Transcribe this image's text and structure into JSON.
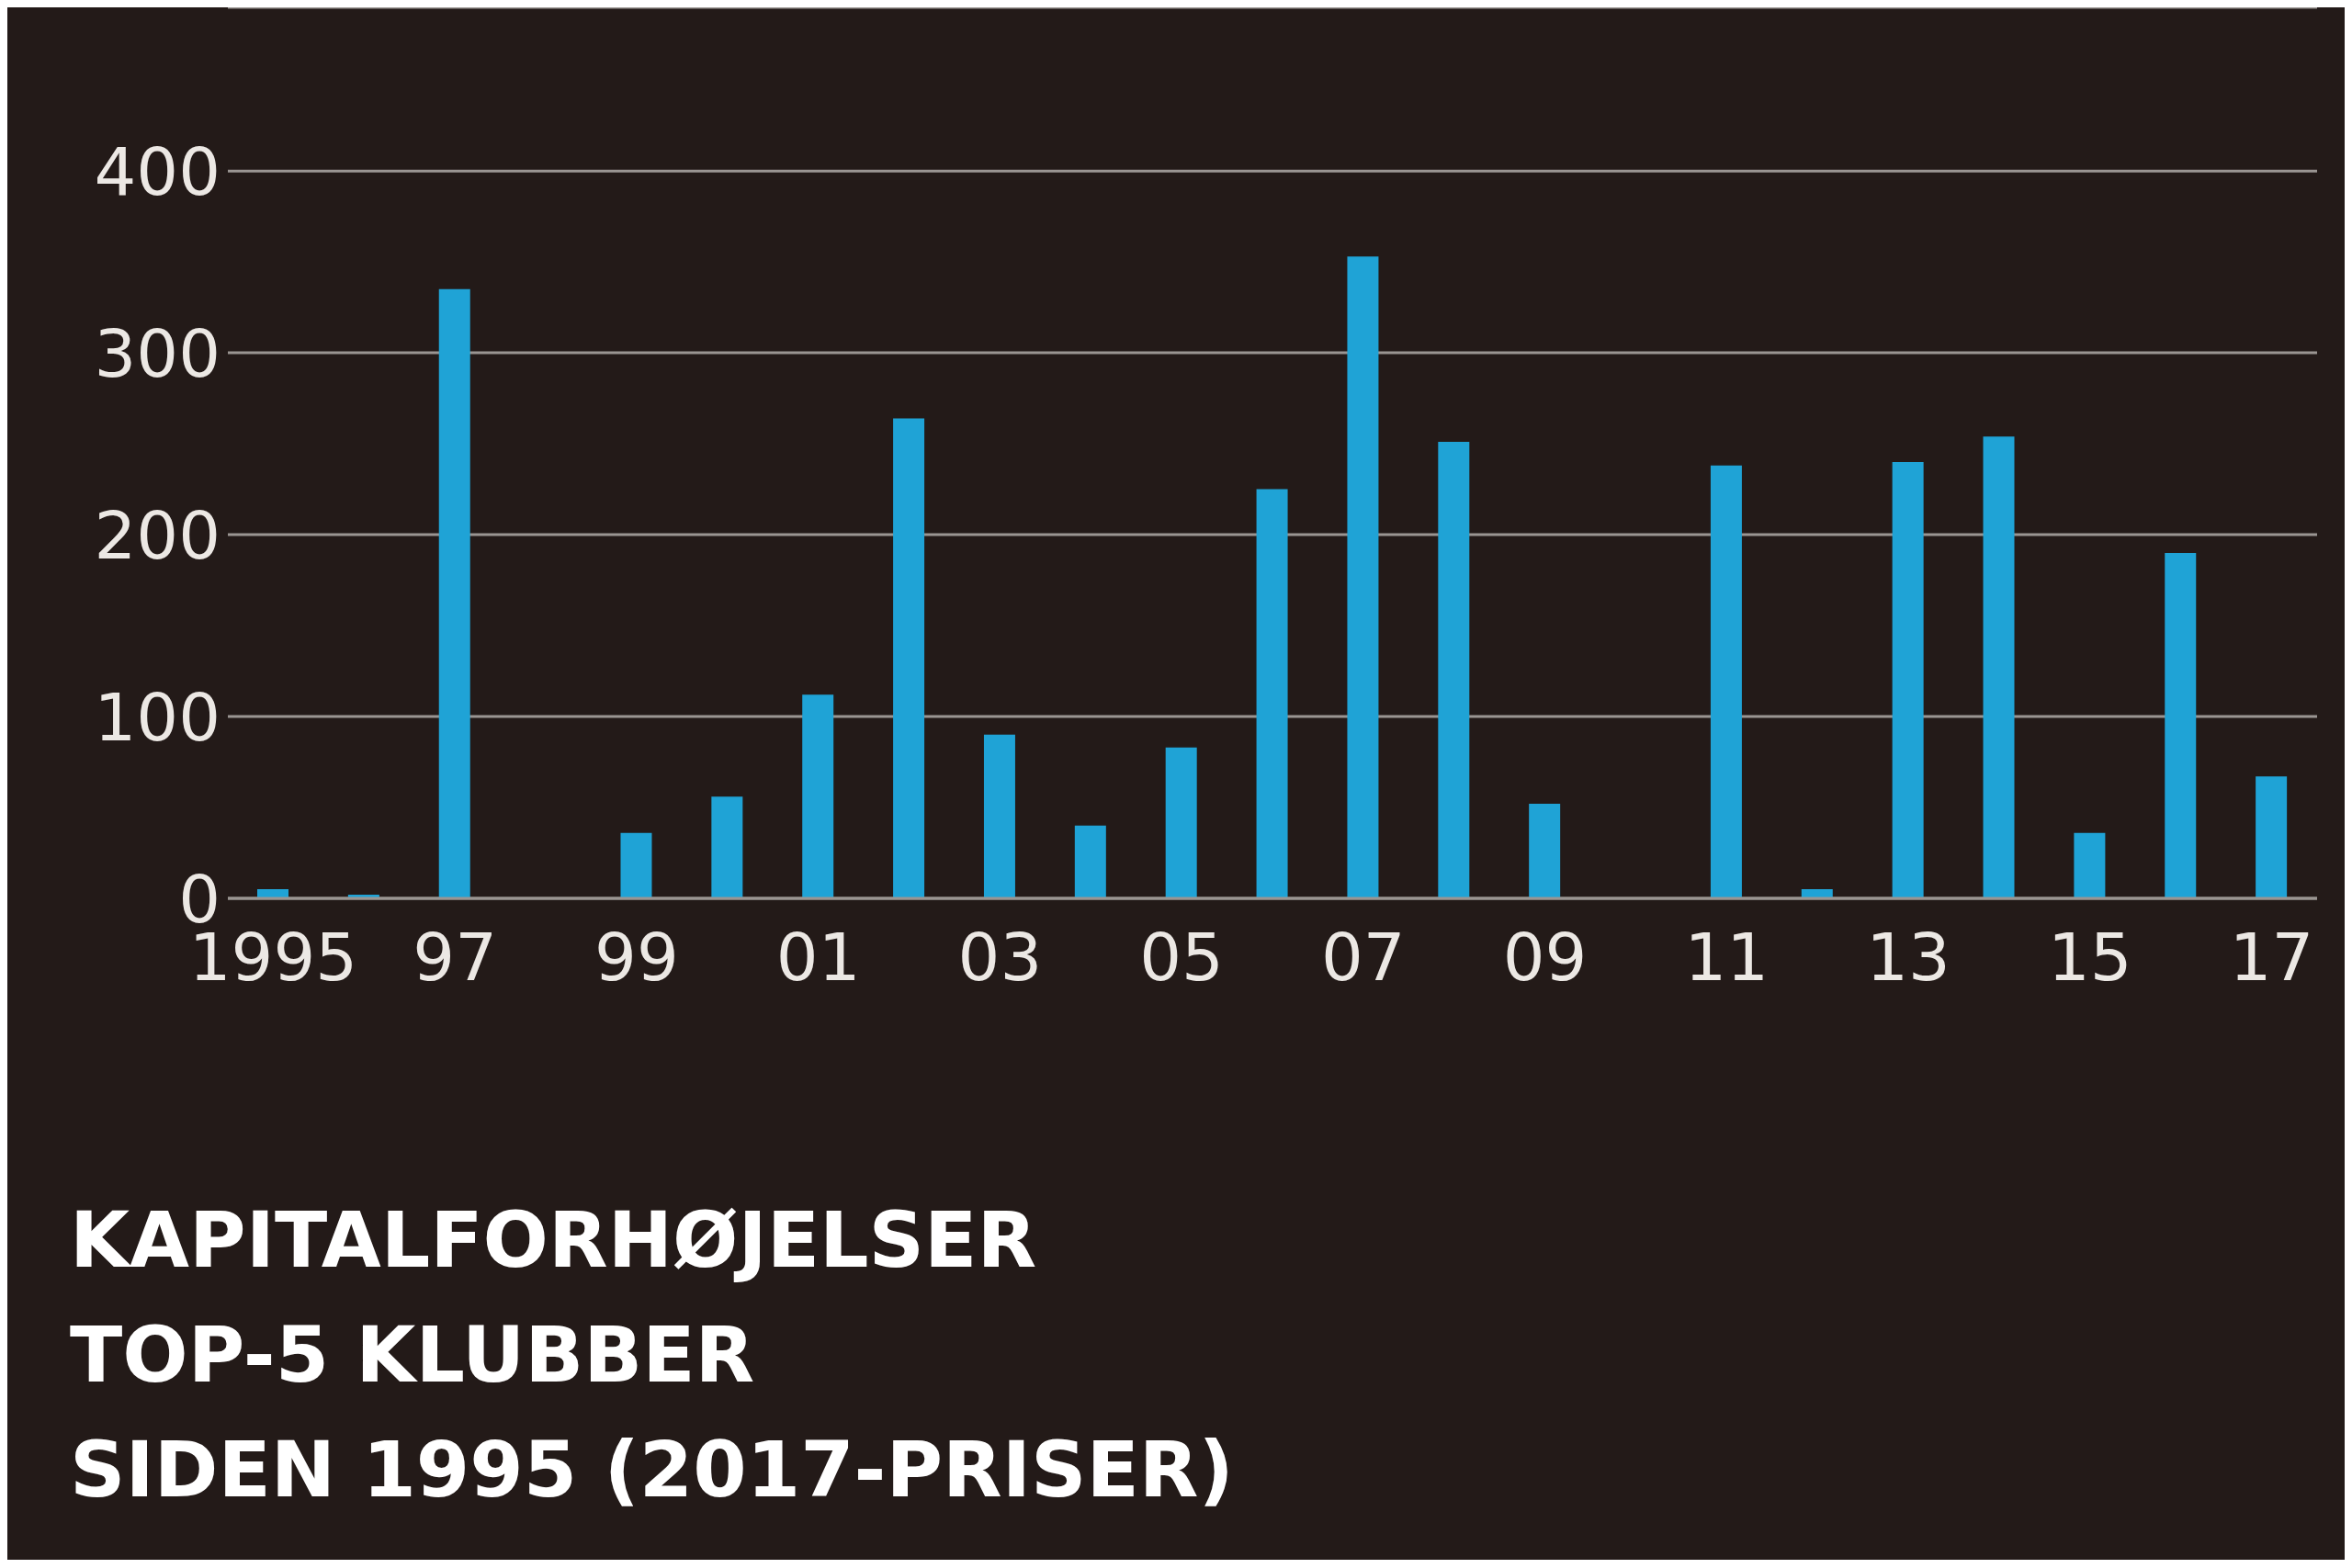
{
  "chart_data": {
    "type": "bar",
    "title": "KAPITALFORHØJELSER\nTOP-5 KLUBBER\nSIDEN 1995 (2017-PRISER)",
    "categories": [
      "1995",
      null,
      "97",
      null,
      "99",
      null,
      "01",
      null,
      "03",
      null,
      "05",
      null,
      "07",
      null,
      "09",
      null,
      "11",
      null,
      "13",
      null,
      "15",
      null,
      "17"
    ],
    "values": [
      5,
      2,
      335,
      null,
      36,
      56,
      112,
      264,
      90,
      40,
      83,
      225,
      353,
      251,
      52,
      null,
      238,
      5,
      240,
      254,
      36,
      190,
      67
    ],
    "color": "#1fa3d6",
    "ylim": [
      0,
      490
    ],
    "yticks": [
      0,
      100,
      200,
      300,
      400
    ],
    "grid": "y"
  }
}
